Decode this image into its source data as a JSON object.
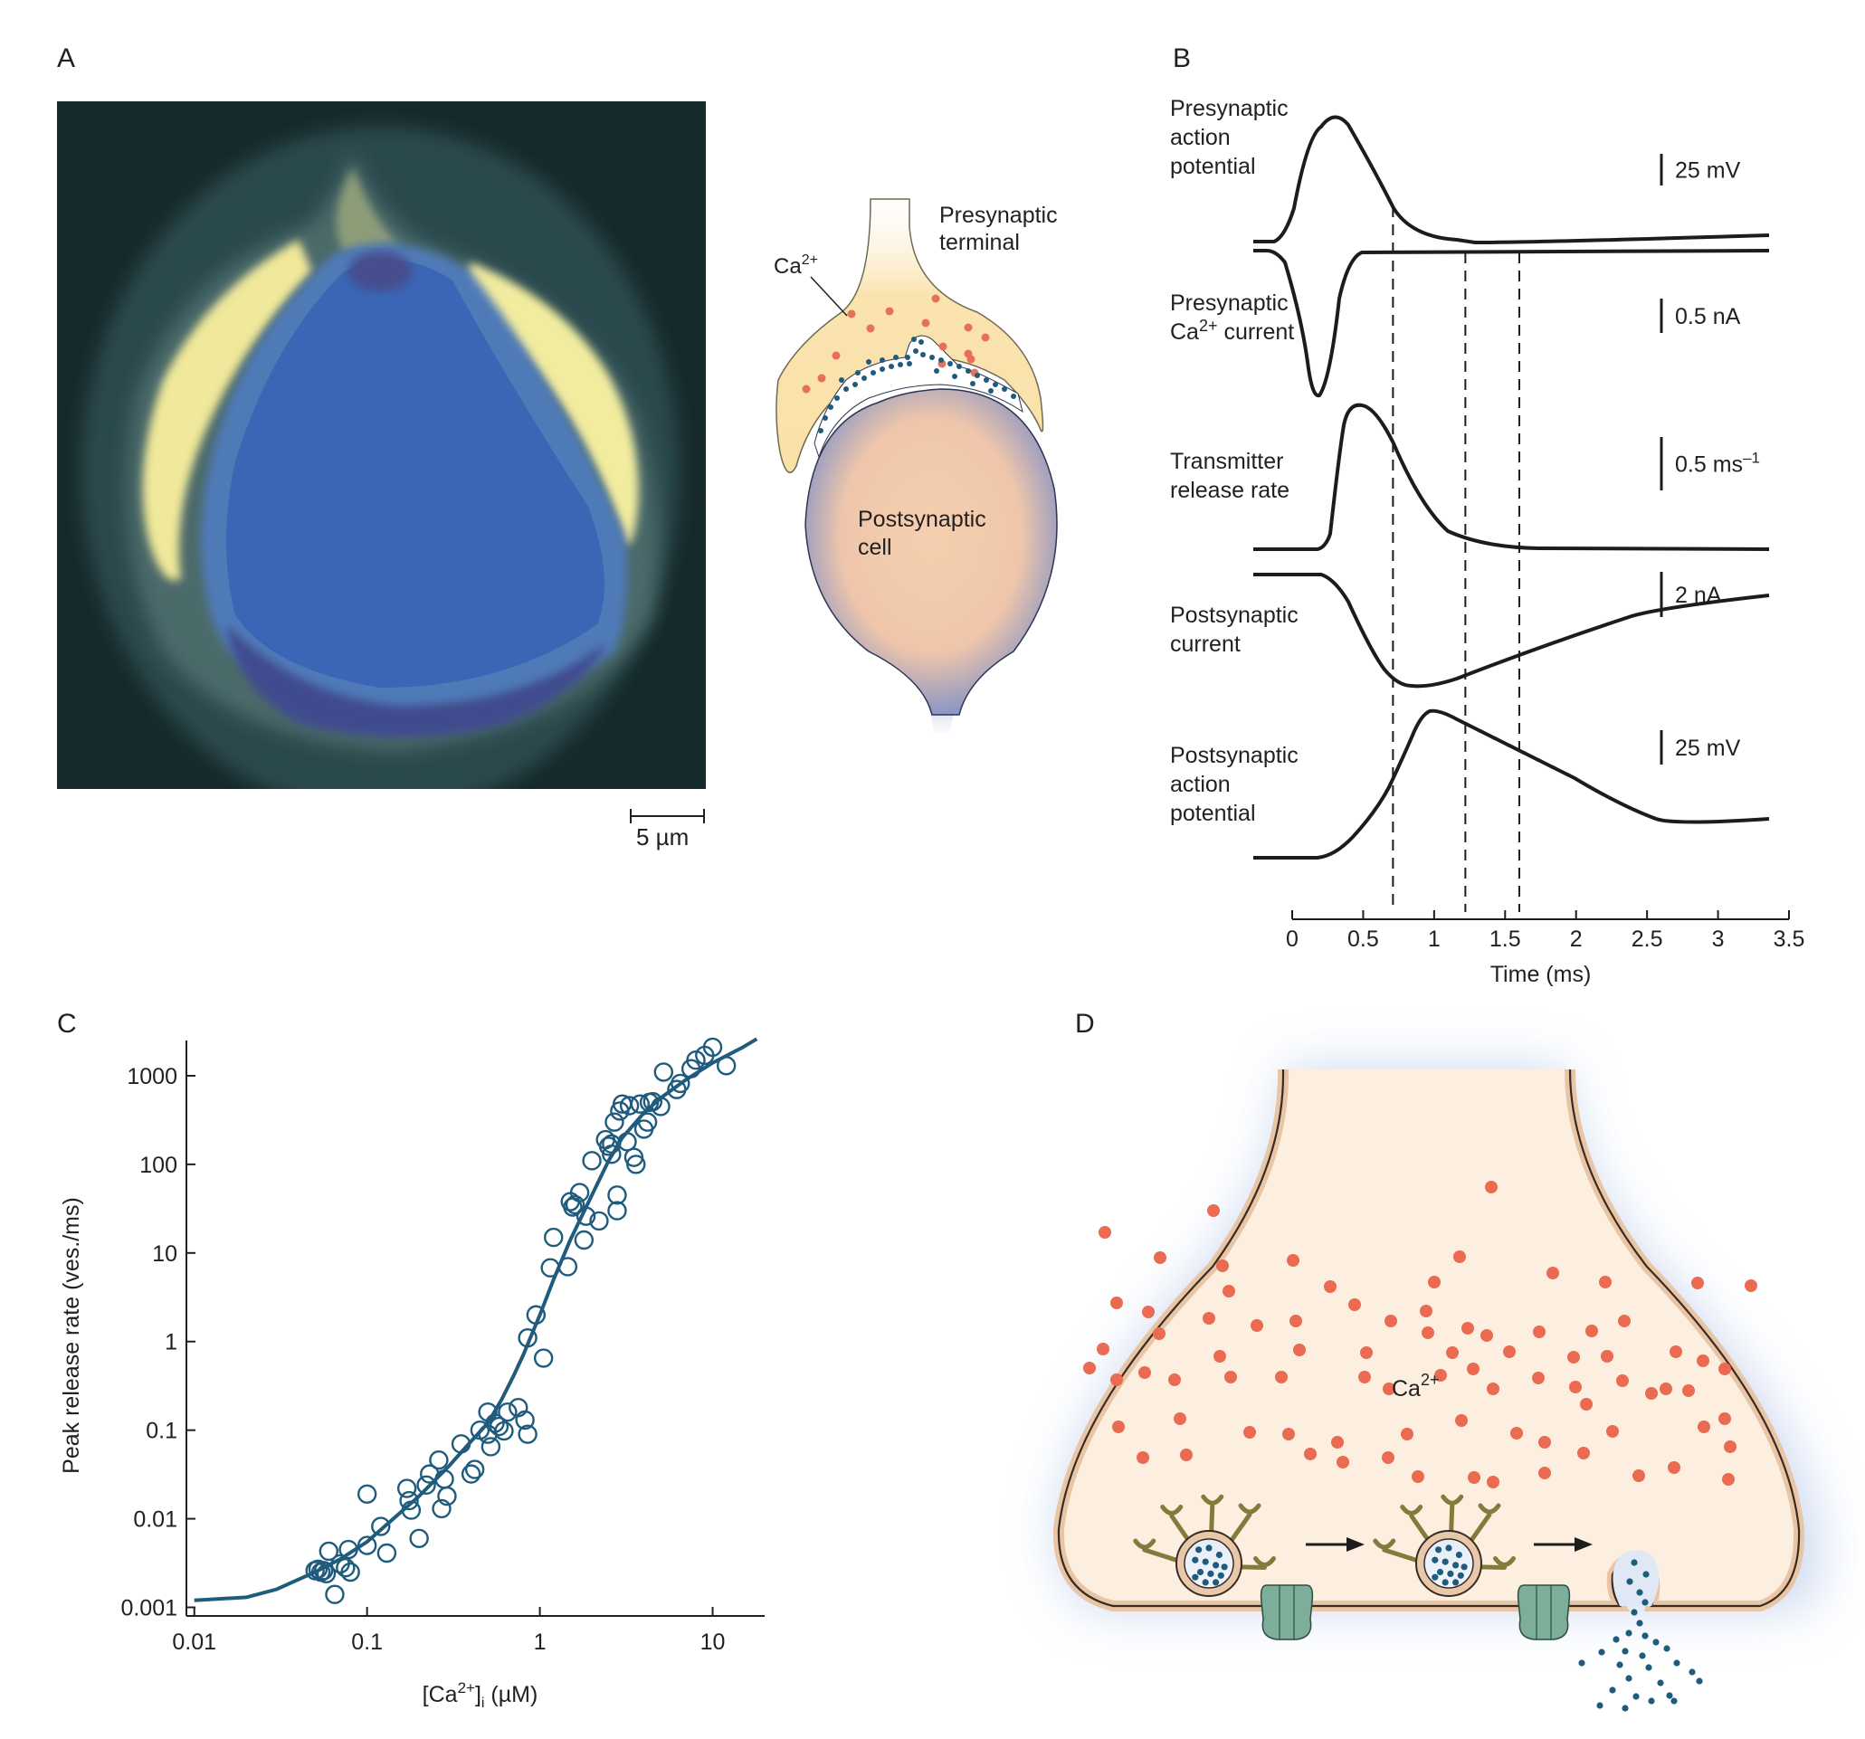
{
  "panels": {
    "A": {
      "label": "A",
      "scale_bar": "5 µm",
      "diagram": {
        "presynaptic_label_line1": "Presynaptic",
        "presynaptic_label_line2": "terminal",
        "ca_label": "Ca",
        "ca_sup": "2+",
        "postsynaptic_label_line1": "Postsynaptic",
        "postsynaptic_label_line2": "cell"
      }
    },
    "B": {
      "label": "B",
      "traces": [
        {
          "name_lines": [
            "Presynaptic",
            "action",
            "potential"
          ],
          "scale": "25 mV"
        },
        {
          "name_lines": [
            "Presynaptic",
            "Ca2+ current"
          ],
          "scale": "0.5 nA"
        },
        {
          "name_lines": [
            "Transmitter",
            "release rate"
          ],
          "scale": "0.5 ms–1"
        },
        {
          "name_lines": [
            "Postsynaptic",
            "current"
          ],
          "scale": "2 nA"
        },
        {
          "name_lines": [
            "Postsynaptic",
            "action",
            "potential"
          ],
          "scale": "25 mV"
        }
      ],
      "x_ticks": [
        "0",
        "0.5",
        "1",
        "1.5",
        "2",
        "2.5",
        "3",
        "3.5"
      ],
      "x_label": "Time (ms)",
      "dashed_lines_ms": [
        0.71,
        1.22,
        1.6
      ]
    },
    "D": {
      "label": "D",
      "ca_label": "Ca",
      "ca_sup": "2+"
    }
  },
  "chart_data": {
    "type": "scatter",
    "panel_label": "C",
    "title": "",
    "xlabel": "[Ca2+]i (µM)",
    "ylabel": "Peak release rate (ves./ms)",
    "xscale": "log",
    "yscale": "log",
    "xlim": [
      0.009,
      20
    ],
    "ylim": [
      0.0008,
      2500
    ],
    "x_ticks": [
      "0.01",
      "0.1",
      "1",
      "10"
    ],
    "y_ticks": [
      "0.001",
      "0.01",
      "0.1",
      "1",
      "10",
      "100",
      "1000"
    ],
    "grid": false,
    "series": [
      {
        "name": "measured",
        "marker": "open-circle",
        "color": "#1f5b7c",
        "points": [
          [
            0.05,
            0.0026
          ],
          [
            0.052,
            0.0027
          ],
          [
            0.054,
            0.0025
          ],
          [
            0.056,
            0.0026
          ],
          [
            0.058,
            0.0024
          ],
          [
            0.06,
            0.0043
          ],
          [
            0.065,
            0.0014
          ],
          [
            0.07,
            0.0031
          ],
          [
            0.075,
            0.0028
          ],
          [
            0.078,
            0.0045
          ],
          [
            0.08,
            0.0025
          ],
          [
            0.1,
            0.005
          ],
          [
            0.1,
            0.019
          ],
          [
            0.12,
            0.0082
          ],
          [
            0.13,
            0.0041
          ],
          [
            0.17,
            0.022
          ],
          [
            0.175,
            0.016
          ],
          [
            0.18,
            0.0125
          ],
          [
            0.2,
            0.006
          ],
          [
            0.22,
            0.024
          ],
          [
            0.23,
            0.032
          ],
          [
            0.26,
            0.046
          ],
          [
            0.27,
            0.013
          ],
          [
            0.28,
            0.028
          ],
          [
            0.29,
            0.018
          ],
          [
            0.35,
            0.07
          ],
          [
            0.4,
            0.032
          ],
          [
            0.42,
            0.036
          ],
          [
            0.45,
            0.1
          ],
          [
            0.5,
            0.16
          ],
          [
            0.5,
            0.09
          ],
          [
            0.52,
            0.065
          ],
          [
            0.55,
            0.12
          ],
          [
            0.58,
            0.11
          ],
          [
            0.62,
            0.098
          ],
          [
            0.65,
            0.16
          ],
          [
            0.75,
            0.18
          ],
          [
            0.82,
            0.13
          ],
          [
            0.85,
            0.09
          ],
          [
            0.85,
            1.1
          ],
          [
            0.95,
            2.0
          ],
          [
            1.05,
            0.65
          ],
          [
            1.15,
            6.8
          ],
          [
            1.2,
            15
          ],
          [
            1.45,
            7
          ],
          [
            1.5,
            38
          ],
          [
            1.55,
            33
          ],
          [
            1.6,
            35
          ],
          [
            1.7,
            48
          ],
          [
            1.8,
            14
          ],
          [
            1.85,
            26
          ],
          [
            2.0,
            110
          ],
          [
            2.2,
            23
          ],
          [
            2.4,
            190
          ],
          [
            2.5,
            160
          ],
          [
            2.6,
            170
          ],
          [
            2.6,
            130
          ],
          [
            2.7,
            300
          ],
          [
            2.8,
            30
          ],
          [
            2.8,
            45
          ],
          [
            2.9,
            400
          ],
          [
            3.0,
            480
          ],
          [
            3.2,
            180
          ],
          [
            3.3,
            460
          ],
          [
            3.5,
            120
          ],
          [
            3.6,
            100
          ],
          [
            3.8,
            480
          ],
          [
            4.0,
            250
          ],
          [
            4.2,
            300
          ],
          [
            4.3,
            500
          ],
          [
            4.5,
            510
          ],
          [
            5.0,
            450
          ],
          [
            5.2,
            1100
          ],
          [
            6.2,
            700
          ],
          [
            6.5,
            820
          ],
          [
            7.5,
            1200
          ],
          [
            8.0,
            1500
          ],
          [
            9.0,
            1700
          ],
          [
            10,
            2100
          ],
          [
            12,
            1300
          ]
        ]
      },
      {
        "name": "fit",
        "marker": "line",
        "color": "#1f5b7c",
        "points": [
          [
            0.01,
            0.0012
          ],
          [
            0.02,
            0.0013
          ],
          [
            0.03,
            0.0016
          ],
          [
            0.05,
            0.0025
          ],
          [
            0.07,
            0.0035
          ],
          [
            0.1,
            0.0055
          ],
          [
            0.15,
            0.011
          ],
          [
            0.2,
            0.018
          ],
          [
            0.3,
            0.04
          ],
          [
            0.4,
            0.075
          ],
          [
            0.5,
            0.12
          ],
          [
            0.6,
            0.22
          ],
          [
            0.7,
            0.4
          ],
          [
            0.8,
            0.7
          ],
          [
            1.0,
            2.0
          ],
          [
            1.2,
            5
          ],
          [
            1.5,
            14
          ],
          [
            2.0,
            45
          ],
          [
            2.5,
            110
          ],
          [
            3.0,
            200
          ],
          [
            4.0,
            380
          ],
          [
            5.0,
            560
          ],
          [
            7.0,
            900
          ],
          [
            10,
            1400
          ],
          [
            15,
            2100
          ],
          [
            18,
            2600
          ]
        ]
      }
    ]
  }
}
